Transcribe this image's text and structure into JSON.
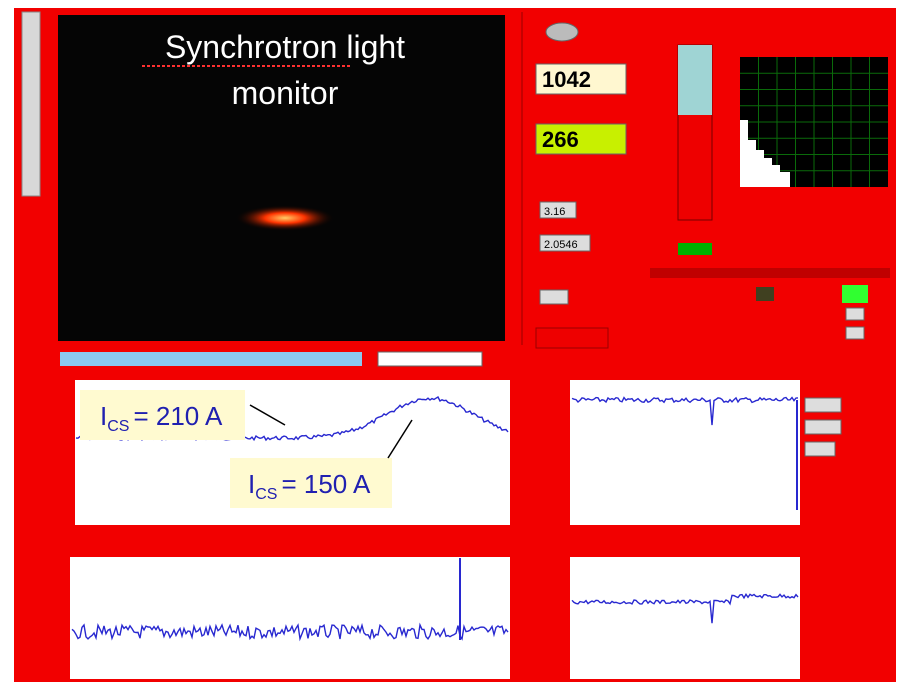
{
  "monitor": {
    "title_line1": "Synchrotron light",
    "title_line2": "monitor"
  },
  "readouts": {
    "sigma_x": "1042",
    "sigma_y": "266",
    "ratio": "3.16",
    "secondary": "2.0546"
  },
  "annotations": [
    {
      "symbol": "I",
      "subscript": "CS",
      "text": "= 210 A"
    },
    {
      "symbol": "I",
      "subscript": "CS",
      "text": "= 150 A"
    }
  ]
}
